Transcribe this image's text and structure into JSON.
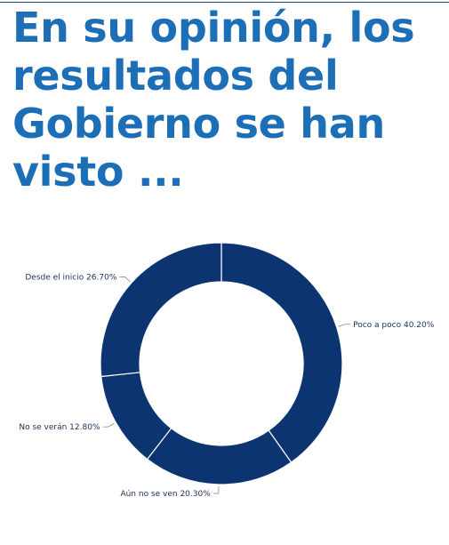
{
  "page": {
    "title": "En su opinión, los resultados del Gobierno se han visto ..."
  },
  "chart_data": {
    "type": "pie",
    "donut": true,
    "title": "En su opinión, los resultados del Gobierno se han visto ...",
    "slice_color": "#0b3470",
    "separator_color": "#ffffff",
    "label_color": "#1b2f55",
    "slices": [
      {
        "name": "Poco a poco",
        "value": 40.2,
        "label": "Poco a poco 40.20%"
      },
      {
        "name": "Aún no se ven",
        "value": 20.3,
        "label": "Aún no se ven 20.30%"
      },
      {
        "name": "No se verán",
        "value": 12.8,
        "label": "No se verán 12.80%"
      },
      {
        "name": "Desde el inicio",
        "value": 26.7,
        "label": "Desde el inicio 26.70%"
      }
    ]
  }
}
